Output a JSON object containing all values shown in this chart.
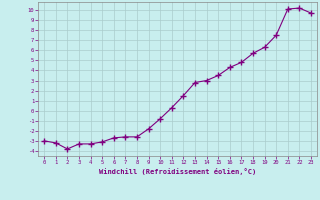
{
  "x": [
    0,
    1,
    2,
    3,
    4,
    5,
    6,
    7,
    8,
    9,
    10,
    11,
    12,
    13,
    14,
    15,
    16,
    17,
    18,
    19,
    20,
    21,
    22,
    23
  ],
  "y": [
    -3,
    -3.2,
    -3.8,
    -3.3,
    -3.3,
    -3.1,
    -2.7,
    -2.6,
    -2.6,
    -1.8,
    -0.8,
    0.3,
    1.5,
    2.8,
    3.0,
    3.5,
    4.3,
    4.8,
    5.7,
    6.3,
    7.5,
    10.1,
    10.2,
    9.7
  ],
  "xlabel": "Windchill (Refroidissement éolien,°C)",
  "line_color": "#800080",
  "marker": "+",
  "bg_color": "#c8eeee",
  "grid_color": "#aacccc",
  "tick_color": "#800080",
  "label_color": "#800080",
  "xlim": [
    -0.5,
    23.5
  ],
  "ylim": [
    -4.5,
    10.8
  ],
  "ytick_min": -4,
  "ytick_max": 10,
  "xticks": [
    0,
    1,
    2,
    3,
    4,
    5,
    6,
    7,
    8,
    9,
    10,
    11,
    12,
    13,
    14,
    15,
    16,
    17,
    18,
    19,
    20,
    21,
    22,
    23
  ]
}
